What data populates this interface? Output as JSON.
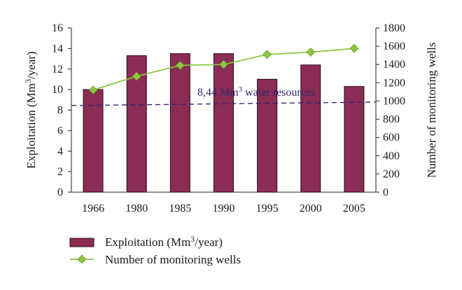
{
  "chart_data": {
    "type": "bar",
    "categories": [
      "1966",
      "1980",
      "1985",
      "1990",
      "1995",
      "2000",
      "2005"
    ],
    "series": [
      {
        "name": "Exploitation (Mm³/year)",
        "type": "bar",
        "axis": "left",
        "color": "#8b2c55",
        "values": [
          10.0,
          13.3,
          13.5,
          13.5,
          11.0,
          12.4,
          10.3
        ]
      },
      {
        "name": "Number of monitoring wells",
        "type": "line",
        "axis": "right",
        "color": "#8dc63f",
        "marker": "diamond",
        "values": [
          1120,
          1270,
          1390,
          1400,
          1510,
          1535,
          1575
        ]
      }
    ],
    "ylabel_left": {
      "main": "Exploitation (Mm",
      "sup": "3",
      "rest": "/year)"
    },
    "ylabel_right": "Number of monitoring wells",
    "ylim_left": [
      0,
      16
    ],
    "yticks_left": [
      0,
      2,
      4,
      6,
      8,
      10,
      12,
      14,
      16
    ],
    "ylim_right": [
      0,
      1800
    ],
    "yticks_right": [
      0,
      200,
      400,
      600,
      800,
      1000,
      1200,
      1400,
      1600,
      1800
    ],
    "reference_line": {
      "value": 8.44,
      "color": "#2e2a6e",
      "style": "dashed",
      "label": {
        "main": "8,44 Mm",
        "sup": "3",
        "rest": " water resources"
      }
    },
    "legend": {
      "placement": "bottom-left",
      "entries": [
        {
          "main": "Exploitation (Mm",
          "sup": "3",
          "rest": "/year)"
        },
        {
          "main": "Number of monitoring wells",
          "sup": "",
          "rest": ""
        }
      ]
    },
    "grid": false
  }
}
